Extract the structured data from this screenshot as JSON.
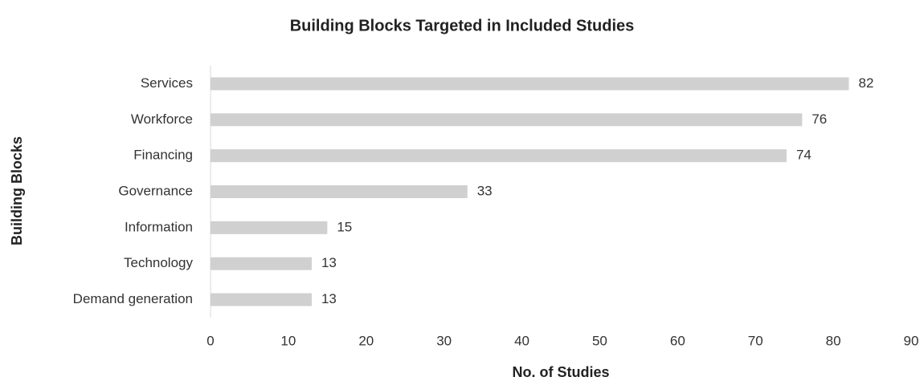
{
  "chart_data": {
    "type": "bar",
    "orientation": "horizontal",
    "title": "Building Blocks Targeted in Included Studies",
    "x_label": "No. of Studies",
    "y_label": "Building Blocks",
    "categories": [
      "Services",
      "Workforce",
      "Financing",
      "Governance",
      "Information",
      "Technology",
      "Demand generation"
    ],
    "values": [
      82,
      76,
      74,
      33,
      15,
      13,
      13
    ],
    "color": "#d0d0d0",
    "xlim": [
      0,
      90
    ],
    "xticks": [
      0,
      10,
      20,
      30,
      40,
      50,
      60,
      70,
      80,
      90
    ],
    "grid": false
  }
}
